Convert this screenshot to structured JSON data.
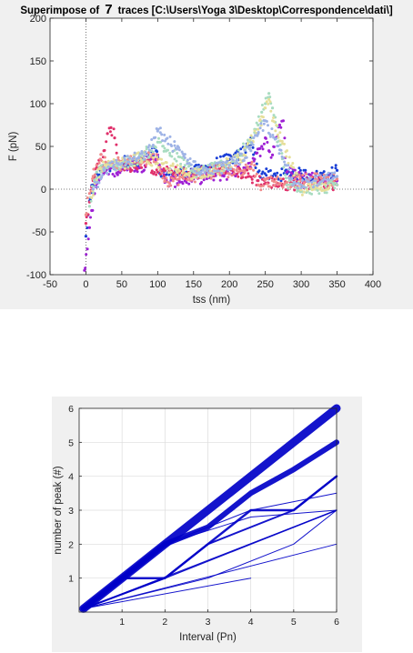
{
  "chart_data": [
    {
      "type": "scatter",
      "title_prefix": "Superimpose of",
      "title_count": "7",
      "title_suffix": "traces [C:\\Users\\Yoga 3\\Desktop\\Correspondence\\dati\\]",
      "xlabel": "tss (nm)",
      "ylabel": "F (pN)",
      "xlim": [
        -50,
        400
      ],
      "ylim": [
        -100,
        200
      ],
      "xticks": [
        "-50",
        "0",
        "50",
        "100",
        "150",
        "200",
        "250",
        "300",
        "350",
        "400"
      ],
      "yticks": [
        "-100",
        "-50",
        "0",
        "50",
        "100",
        "150",
        "200"
      ],
      "grid": false,
      "reference_lines": {
        "x": 0,
        "y": 0,
        "style": "dotted"
      },
      "series": [
        {
          "color": "#1a3fd6",
          "points": [
            [
              0,
              -55
            ],
            [
              3,
              -30
            ],
            [
              6,
              -12
            ],
            [
              10,
              5
            ],
            [
              15,
              18
            ],
            [
              20,
              22
            ],
            [
              30,
              25
            ],
            [
              40,
              28
            ],
            [
              50,
              30
            ],
            [
              60,
              35
            ],
            [
              70,
              28
            ],
            [
              80,
              35
            ],
            [
              90,
              40
            ],
            [
              98,
              45
            ],
            [
              105,
              15
            ],
            [
              120,
              18
            ],
            [
              140,
              20
            ],
            [
              160,
              22
            ],
            [
              180,
              30
            ],
            [
              200,
              35
            ],
            [
              215,
              40
            ],
            [
              225,
              50
            ],
            [
              230,
              60
            ],
            [
              240,
              20
            ],
            [
              260,
              15
            ],
            [
              280,
              18
            ],
            [
              300,
              18
            ],
            [
              320,
              15
            ],
            [
              340,
              18
            ],
            [
              350,
              22
            ]
          ]
        },
        {
          "color": "#9d1fd4",
          "points": [
            [
              -2,
              -95
            ],
            [
              2,
              -70
            ],
            [
              5,
              -45
            ],
            [
              8,
              -25
            ],
            [
              12,
              -5
            ],
            [
              18,
              10
            ],
            [
              25,
              20
            ],
            [
              35,
              25
            ],
            [
              45,
              20
            ],
            [
              60,
              30
            ],
            [
              75,
              25
            ],
            [
              90,
              35
            ],
            [
              100,
              40
            ],
            [
              110,
              8
            ],
            [
              130,
              10
            ],
            [
              150,
              12
            ],
            [
              175,
              15
            ],
            [
              200,
              18
            ],
            [
              220,
              25
            ],
            [
              235,
              35
            ],
            [
              245,
              50
            ],
            [
              250,
              60
            ],
            [
              255,
              45
            ],
            [
              260,
              40
            ],
            [
              265,
              60
            ],
            [
              270,
              75
            ],
            [
              275,
              80
            ],
            [
              280,
              20
            ],
            [
              300,
              15
            ],
            [
              330,
              12
            ],
            [
              350,
              10
            ]
          ]
        },
        {
          "color": "#e0306b",
          "points": [
            [
              0,
              -40
            ],
            [
              5,
              -15
            ],
            [
              10,
              10
            ],
            [
              15,
              25
            ],
            [
              20,
              35
            ],
            [
              25,
              45
            ],
            [
              30,
              65
            ],
            [
              35,
              72
            ],
            [
              40,
              60
            ],
            [
              45,
              30
            ],
            [
              60,
              25
            ],
            [
              80,
              32
            ],
            [
              100,
              20
            ],
            [
              150,
              18
            ],
            [
              200,
              25
            ],
            [
              240,
              10
            ],
            [
              280,
              5
            ],
            [
              320,
              8
            ],
            [
              350,
              5
            ]
          ]
        },
        {
          "color": "#f08a8a",
          "points": [
            [
              0,
              -30
            ],
            [
              5,
              -5
            ],
            [
              10,
              15
            ],
            [
              15,
              28
            ],
            [
              20,
              35
            ],
            [
              30,
              30
            ],
            [
              40,
              32
            ],
            [
              50,
              28
            ],
            [
              60,
              30
            ],
            [
              70,
              35
            ],
            [
              80,
              32
            ],
            [
              90,
              38
            ],
            [
              100,
              35
            ],
            [
              110,
              10
            ],
            [
              130,
              12
            ],
            [
              150,
              15
            ],
            [
              170,
              18
            ],
            [
              190,
              20
            ],
            [
              210,
              22
            ],
            [
              225,
              25
            ],
            [
              235,
              28
            ],
            [
              240,
              5
            ],
            [
              260,
              10
            ],
            [
              280,
              8
            ],
            [
              300,
              10
            ],
            [
              320,
              12
            ],
            [
              340,
              10
            ],
            [
              350,
              12
            ]
          ]
        },
        {
          "color": "#a8dcc0",
          "points": [
            [
              5,
              -20
            ],
            [
              15,
              20
            ],
            [
              30,
              25
            ],
            [
              50,
              30
            ],
            [
              70,
              35
            ],
            [
              90,
              45
            ],
            [
              95,
              50
            ],
            [
              100,
              55
            ],
            [
              150,
              20
            ],
            [
              200,
              30
            ],
            [
              230,
              55
            ],
            [
              240,
              75
            ],
            [
              245,
              90
            ],
            [
              250,
              100
            ],
            [
              255,
              112
            ],
            [
              260,
              95
            ],
            [
              280,
              5
            ],
            [
              320,
              0
            ],
            [
              350,
              5
            ]
          ]
        },
        {
          "color": "#e6df9a",
          "points": [
            [
              8,
              -10
            ],
            [
              20,
              25
            ],
            [
              40,
              28
            ],
            [
              60,
              32
            ],
            [
              80,
              38
            ],
            [
              100,
              30
            ],
            [
              140,
              18
            ],
            [
              180,
              22
            ],
            [
              220,
              40
            ],
            [
              240,
              70
            ],
            [
              250,
              95
            ],
            [
              255,
              105
            ],
            [
              260,
              80
            ],
            [
              300,
              0
            ],
            [
              340,
              5
            ]
          ]
        },
        {
          "color": "#9eb3e6",
          "points": [
            [
              10,
              0
            ],
            [
              25,
              22
            ],
            [
              45,
              30
            ],
            [
              65,
              35
            ],
            [
              85,
              40
            ],
            [
              95,
              60
            ],
            [
              100,
              68
            ],
            [
              160,
              20
            ],
            [
              200,
              28
            ],
            [
              230,
              45
            ],
            [
              240,
              65
            ],
            [
              250,
              80
            ],
            [
              290,
              8
            ],
            [
              330,
              10
            ],
            [
              350,
              15
            ]
          ]
        }
      ]
    },
    {
      "type": "line",
      "xlabel": "Interval (Pn)",
      "ylabel": "number of peak (#)",
      "xlim": [
        0,
        6
      ],
      "ylim": [
        0,
        6
      ],
      "xticks": [
        "1",
        "2",
        "3",
        "4",
        "5",
        "6"
      ],
      "yticks": [
        "1",
        "2",
        "3",
        "4",
        "5",
        "6"
      ],
      "grid": true,
      "color": "#0000c8",
      "series": [
        {
          "x": [
            0.1,
            1,
            2,
            3,
            4,
            5,
            6
          ],
          "y": [
            0.1,
            1,
            2,
            3,
            4,
            5,
            6
          ],
          "weight": 9
        },
        {
          "x": [
            0.1,
            1,
            2,
            3,
            4,
            5,
            6
          ],
          "y": [
            0.1,
            1,
            2,
            2.5,
            3.5,
            4.2,
            5
          ],
          "weight": 6
        },
        {
          "x": [
            0.1,
            1,
            2,
            3,
            4,
            5,
            6
          ],
          "y": [
            0.1,
            1,
            1,
            2,
            3,
            3,
            4
          ],
          "weight": 2.5
        },
        {
          "x": [
            0.1,
            2,
            3,
            5,
            6
          ],
          "y": [
            0.1,
            1,
            2,
            3,
            4
          ],
          "weight": 2
        },
        {
          "x": [
            0.1,
            2,
            4,
            6
          ],
          "y": [
            0.1,
            1,
            2,
            3
          ],
          "weight": 1.5
        },
        {
          "x": [
            0.1,
            3,
            5,
            6
          ],
          "y": [
            0.1,
            1,
            2,
            3
          ],
          "weight": 1
        },
        {
          "x": [
            0.1,
            2,
            4,
            6
          ],
          "y": [
            0.1,
            2,
            3,
            3.5
          ],
          "weight": 1
        },
        {
          "x": [
            0.1,
            2,
            4,
            6
          ],
          "y": [
            0.1,
            2,
            2.8,
            3
          ],
          "weight": 1
        },
        {
          "x": [
            0.1,
            4
          ],
          "y": [
            0.1,
            1
          ],
          "weight": 1
        },
        {
          "x": [
            0.1,
            6
          ],
          "y": [
            0.1,
            2
          ],
          "weight": 1
        },
        {
          "x": [
            0.1,
            6
          ],
          "y": [
            0.1,
            3
          ],
          "weight": 1
        }
      ]
    }
  ]
}
